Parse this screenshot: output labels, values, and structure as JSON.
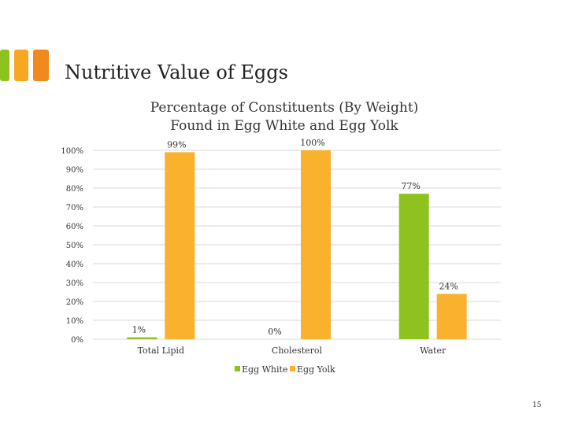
{
  "slide": {
    "title": "Nutritive Value of Eggs",
    "page_number": "15",
    "accent_colors": [
      "#8dc21f",
      "#f7a823",
      "#f08a1c"
    ]
  },
  "chart_data": {
    "type": "bar",
    "title": "Percentage of Constituents (By Weight) Found in Egg White and Egg Yolk",
    "title_lines": [
      "Percentage of Constituents (By Weight)",
      "Found in Egg White and Egg Yolk"
    ],
    "categories": [
      "Total Lipid",
      "Cholesterol",
      "Water"
    ],
    "series": [
      {
        "name": "Egg White",
        "color": "#8dc21f",
        "values": [
          1,
          0,
          77
        ],
        "labels": [
          "1%",
          "0%",
          "77%"
        ]
      },
      {
        "name": "Egg Yolk",
        "color": "#f9b12e",
        "values": [
          99,
          100,
          24
        ],
        "labels": [
          "99%",
          "100%",
          "24%"
        ]
      }
    ],
    "ylim": [
      0,
      100
    ],
    "yticks": [
      "0%",
      "10%",
      "20%",
      "30%",
      "40%",
      "50%",
      "60%",
      "70%",
      "80%",
      "90%",
      "100%"
    ],
    "grid": true,
    "legend": "bottom",
    "xlabel": "",
    "ylabel": ""
  }
}
